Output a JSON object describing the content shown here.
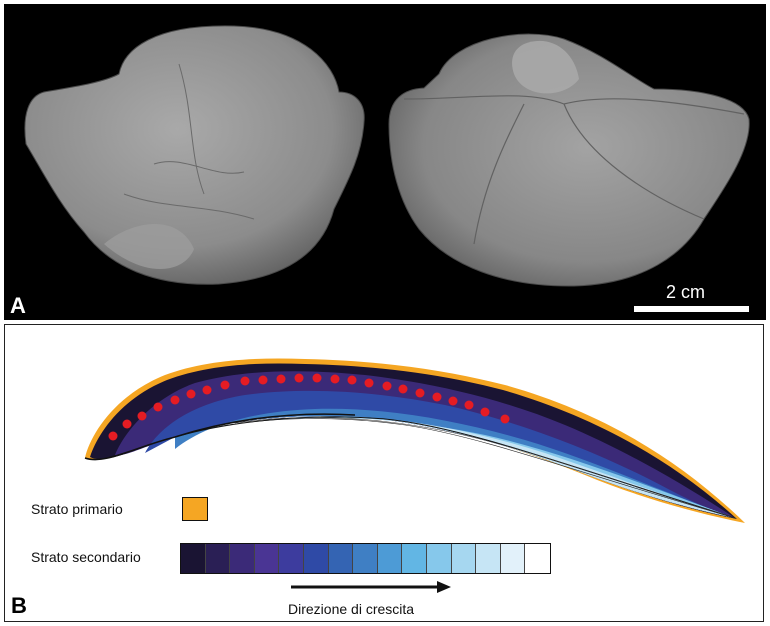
{
  "panel_a": {
    "letter": "A",
    "scale_label": "2 cm",
    "colors": {
      "background": "#000000",
      "specimen": "#8f8f8f"
    }
  },
  "panel_b": {
    "letter": "B",
    "primary_label": "Strato primario",
    "secondary_label": "Strato secondario",
    "growth_label": "Direzione di crescita",
    "primary_color": "#f5a623",
    "dot_color": "#e51c23",
    "secondary_gradient": [
      "#1a1433",
      "#2a1f55",
      "#3b2a78",
      "#4a3594",
      "#3d3c9e",
      "#2f4aa6",
      "#3464b3",
      "#3f7fc4",
      "#4d9bd6",
      "#62b6e4",
      "#86c8eb",
      "#a6d7f0",
      "#c6e5f5",
      "#e2f1fa",
      "#ffffff"
    ]
  }
}
